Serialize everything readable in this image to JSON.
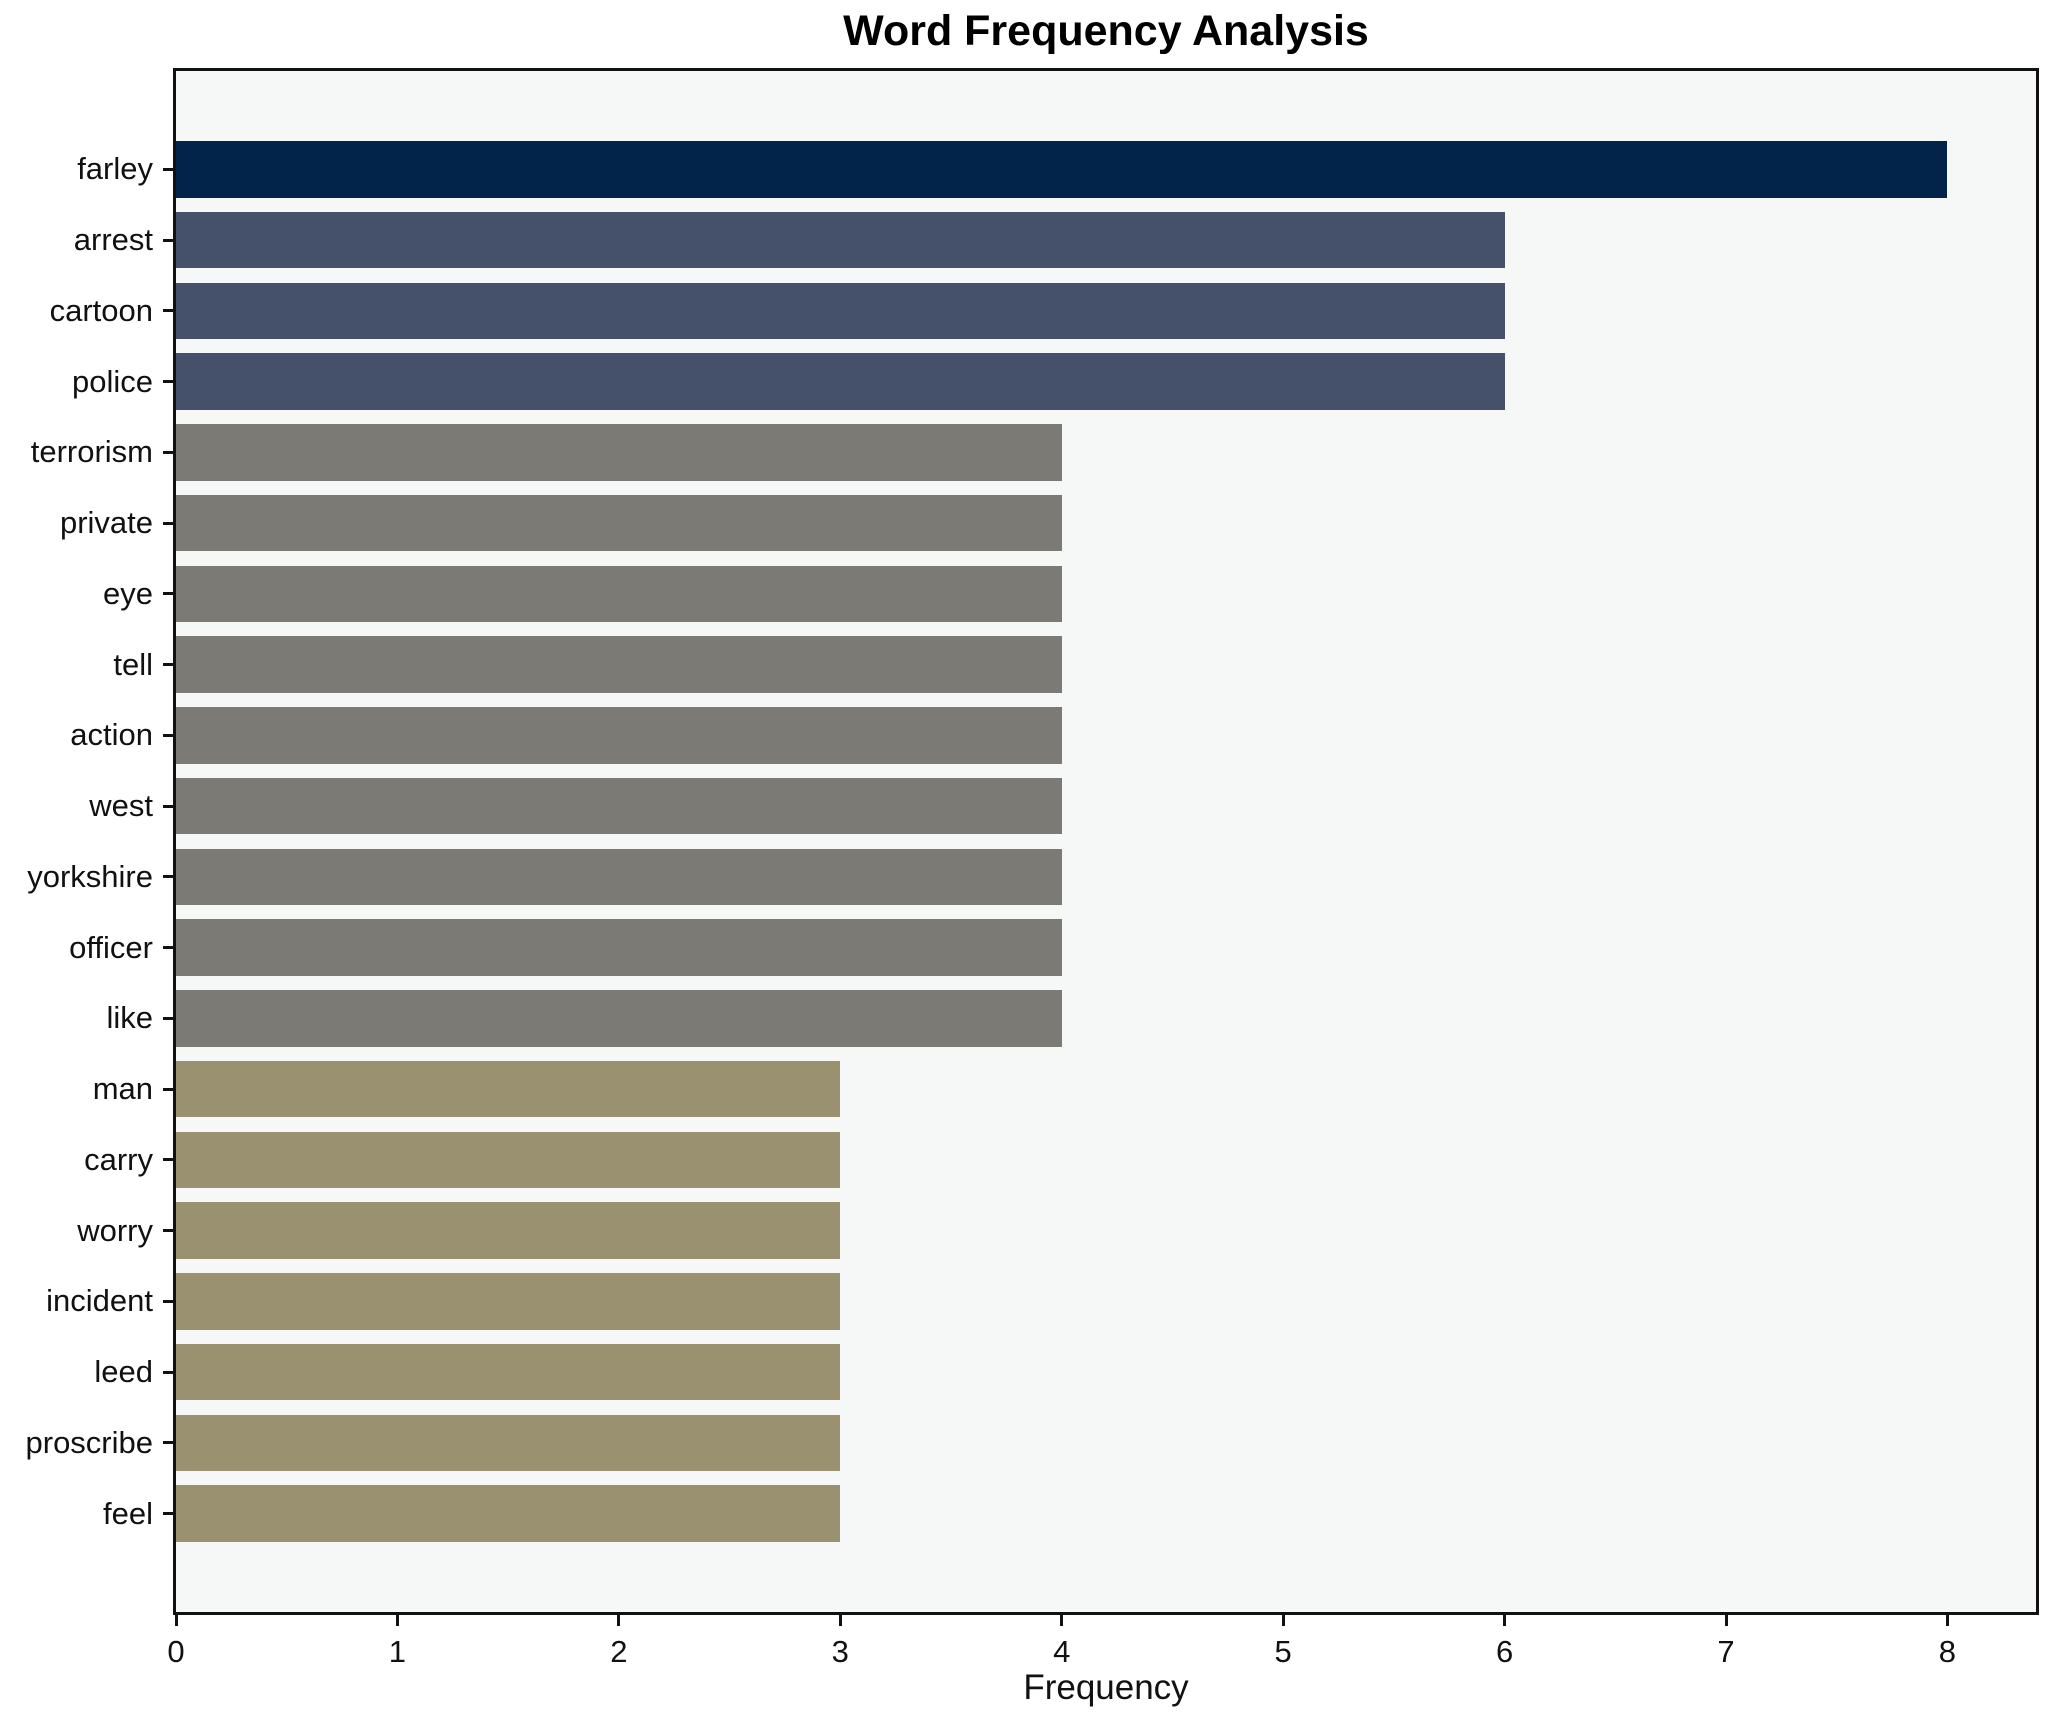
{
  "chart_data": {
    "type": "bar",
    "orientation": "horizontal",
    "title": "Word Frequency Analysis",
    "xlabel": "Frequency",
    "ylabel": "",
    "categories": [
      "farley",
      "arrest",
      "cartoon",
      "police",
      "terrorism",
      "private",
      "eye",
      "tell",
      "action",
      "west",
      "yorkshire",
      "officer",
      "like",
      "man",
      "carry",
      "worry",
      "incident",
      "leed",
      "proscribe",
      "feel"
    ],
    "values": [
      8,
      6,
      6,
      6,
      4,
      4,
      4,
      4,
      4,
      4,
      4,
      4,
      4,
      3,
      3,
      3,
      3,
      3,
      3,
      3
    ],
    "bar_colors": [
      "#02234A",
      "#45506B",
      "#45506B",
      "#45506B",
      "#7B7A74",
      "#7B7A74",
      "#7B7A74",
      "#7B7A74",
      "#7B7A74",
      "#7B7A74",
      "#7B7A74",
      "#7B7A74",
      "#7B7A74",
      "#999170",
      "#999170",
      "#999170",
      "#999170",
      "#999170",
      "#999170",
      "#999170"
    ],
    "x_ticks": [
      0,
      1,
      2,
      3,
      4,
      5,
      6,
      7,
      8
    ],
    "xlim": [
      0,
      8.4
    ],
    "grid": false,
    "legend": "none",
    "plot_background": "#f6f7f7",
    "figure_background": "#ffffff",
    "spine_color": "#111111"
  }
}
